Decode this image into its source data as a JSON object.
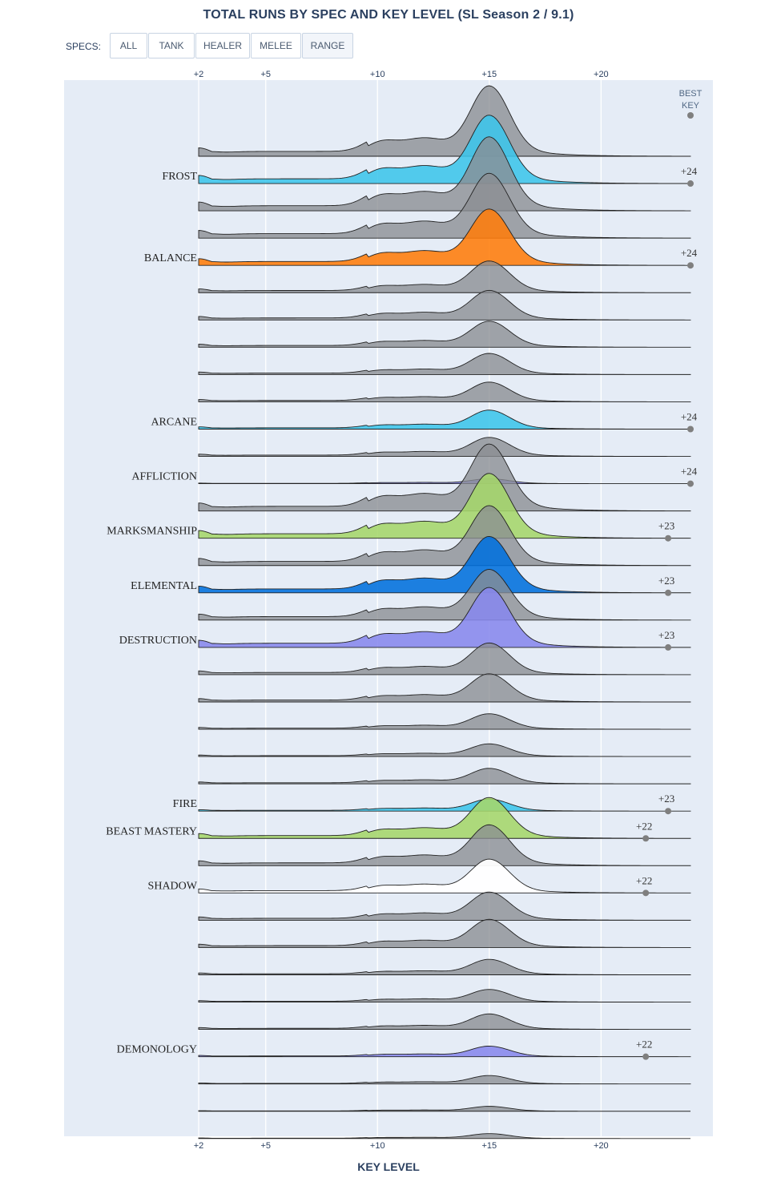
{
  "title": "TOTAL RUNS BY SPEC AND KEY LEVEL (SL Season 2 / 9.1)",
  "specs_label": "SPECS:",
  "buttons": [
    "ALL",
    "TANK",
    "HEALER",
    "MELEE",
    "RANGE"
  ],
  "active_button": "RANGE",
  "best_key_label": [
    "BEST",
    "KEY"
  ],
  "colors": {
    "plot_bg": "#e5ecf6",
    "gray": "#8a8d92",
    "frost": "#3cc5ea",
    "balance": "#ff7c0a",
    "arcane": "#3cc5ea",
    "affliction": "#8787ed",
    "marksmanship": "#a5d66a",
    "elemental": "#0070dd",
    "destruction": "#8787ed",
    "fire": "#3cc5ea",
    "beast_mastery": "#a5d66a",
    "shadow": "#ffffff",
    "demonology": "#8787ed"
  },
  "chart_data": {
    "type": "ridgeline",
    "title": "TOTAL RUNS BY SPEC AND KEY LEVEL (SL Season 2 / 9.1)",
    "xlabel": "KEY LEVEL",
    "x_ticks": [
      "+2",
      "+5",
      "+10",
      "+15",
      "+20"
    ],
    "x_tick_values": [
      2,
      5,
      10,
      15,
      20
    ],
    "xlim": [
      2,
      24
    ],
    "rows": [
      {
        "label": "",
        "color": "gray",
        "size": 1.0,
        "peak": 15,
        "best": null
      },
      {
        "label": "FROST",
        "color": "frost",
        "size": 0.97,
        "peak": 15,
        "best": "+24",
        "best_value": 24
      },
      {
        "label": "",
        "color": "gray",
        "size": 1.05,
        "peak": 15,
        "best": null
      },
      {
        "label": "",
        "color": "gray",
        "size": 0.92,
        "peak": 15,
        "best": null
      },
      {
        "label": "BALANCE",
        "color": "balance",
        "size": 0.8,
        "peak": 15,
        "best": "+24",
        "best_value": 24
      },
      {
        "label": "",
        "color": "gray",
        "size": 0.45,
        "peak": 15,
        "best": null
      },
      {
        "label": "",
        "color": "gray",
        "size": 0.42,
        "peak": 15,
        "best": null
      },
      {
        "label": "",
        "color": "gray",
        "size": 0.37,
        "peak": 15,
        "best": null
      },
      {
        "label": "",
        "color": "gray",
        "size": 0.3,
        "peak": 15,
        "best": null
      },
      {
        "label": "",
        "color": "gray",
        "size": 0.28,
        "peak": 15,
        "best": null
      },
      {
        "label": "ARCANE",
        "color": "arcane",
        "size": 0.27,
        "peak": 15,
        "best": "+24",
        "best_value": 24
      },
      {
        "label": "",
        "color": "gray",
        "size": 0.27,
        "peak": 15,
        "best": null
      },
      {
        "label": "AFFLICTION",
        "color": "affliction",
        "size": 0.07,
        "peak": 15,
        "best": "+24",
        "best_value": 24
      },
      {
        "label": "",
        "color": "gray",
        "size": 0.95,
        "peak": 15,
        "best": null
      },
      {
        "label": "MARKSMANSHIP",
        "color": "marksmanship",
        "size": 0.92,
        "peak": 15,
        "best": "+23",
        "best_value": 23
      },
      {
        "label": "",
        "color": "gray",
        "size": 0.85,
        "peak": 15,
        "best": null
      },
      {
        "label": "ELEMENTAL",
        "color": "elemental",
        "size": 0.8,
        "peak": 15,
        "best": "+23",
        "best_value": 23
      },
      {
        "label": "",
        "color": "gray",
        "size": 0.72,
        "peak": 15,
        "best": null
      },
      {
        "label": "DESTRUCTION",
        "color": "destruction",
        "size": 0.85,
        "peak": 15,
        "best": "+23",
        "best_value": 23
      },
      {
        "label": "",
        "color": "gray",
        "size": 0.45,
        "peak": 15,
        "best": null
      },
      {
        "label": "",
        "color": "gray",
        "size": 0.4,
        "peak": 15,
        "best": null
      },
      {
        "label": "",
        "color": "gray",
        "size": 0.22,
        "peak": 15,
        "best": null
      },
      {
        "label": "",
        "color": "gray",
        "size": 0.18,
        "peak": 15,
        "best": null
      },
      {
        "label": "",
        "color": "gray",
        "size": 0.22,
        "peak": 15,
        "best": null
      },
      {
        "label": "FIRE",
        "color": "fire",
        "size": 0.17,
        "peak": 15,
        "best": "+23",
        "best_value": 23
      },
      {
        "label": "BEAST MASTERY",
        "color": "beast_mastery",
        "size": 0.58,
        "peak": 15,
        "best": "+22",
        "best_value": 22
      },
      {
        "label": "",
        "color": "gray",
        "size": 0.58,
        "peak": 15,
        "best": null
      },
      {
        "label": "SHADOW",
        "color": "shadow",
        "size": 0.48,
        "peak": 15,
        "best": "+22",
        "best_value": 22
      },
      {
        "label": "",
        "color": "gray",
        "size": 0.4,
        "peak": 15,
        "best": null
      },
      {
        "label": "",
        "color": "gray",
        "size": 0.4,
        "peak": 15,
        "best": null
      },
      {
        "label": "",
        "color": "gray",
        "size": 0.22,
        "peak": 15,
        "best": null
      },
      {
        "label": "",
        "color": "gray",
        "size": 0.18,
        "peak": 15,
        "best": null
      },
      {
        "label": "",
        "color": "gray",
        "size": 0.22,
        "peak": 15,
        "best": null
      },
      {
        "label": "DEMONOLOGY",
        "color": "demonology",
        "size": 0.15,
        "peak": 15,
        "best": "+22",
        "best_value": 22
      },
      {
        "label": "",
        "color": "gray",
        "size": 0.12,
        "peak": 15,
        "best": null
      },
      {
        "label": "",
        "color": "gray",
        "size": 0.07,
        "peak": 15,
        "best": null
      },
      {
        "label": "",
        "color": "gray",
        "size": 0.07,
        "peak": 15,
        "best": null
      }
    ]
  }
}
